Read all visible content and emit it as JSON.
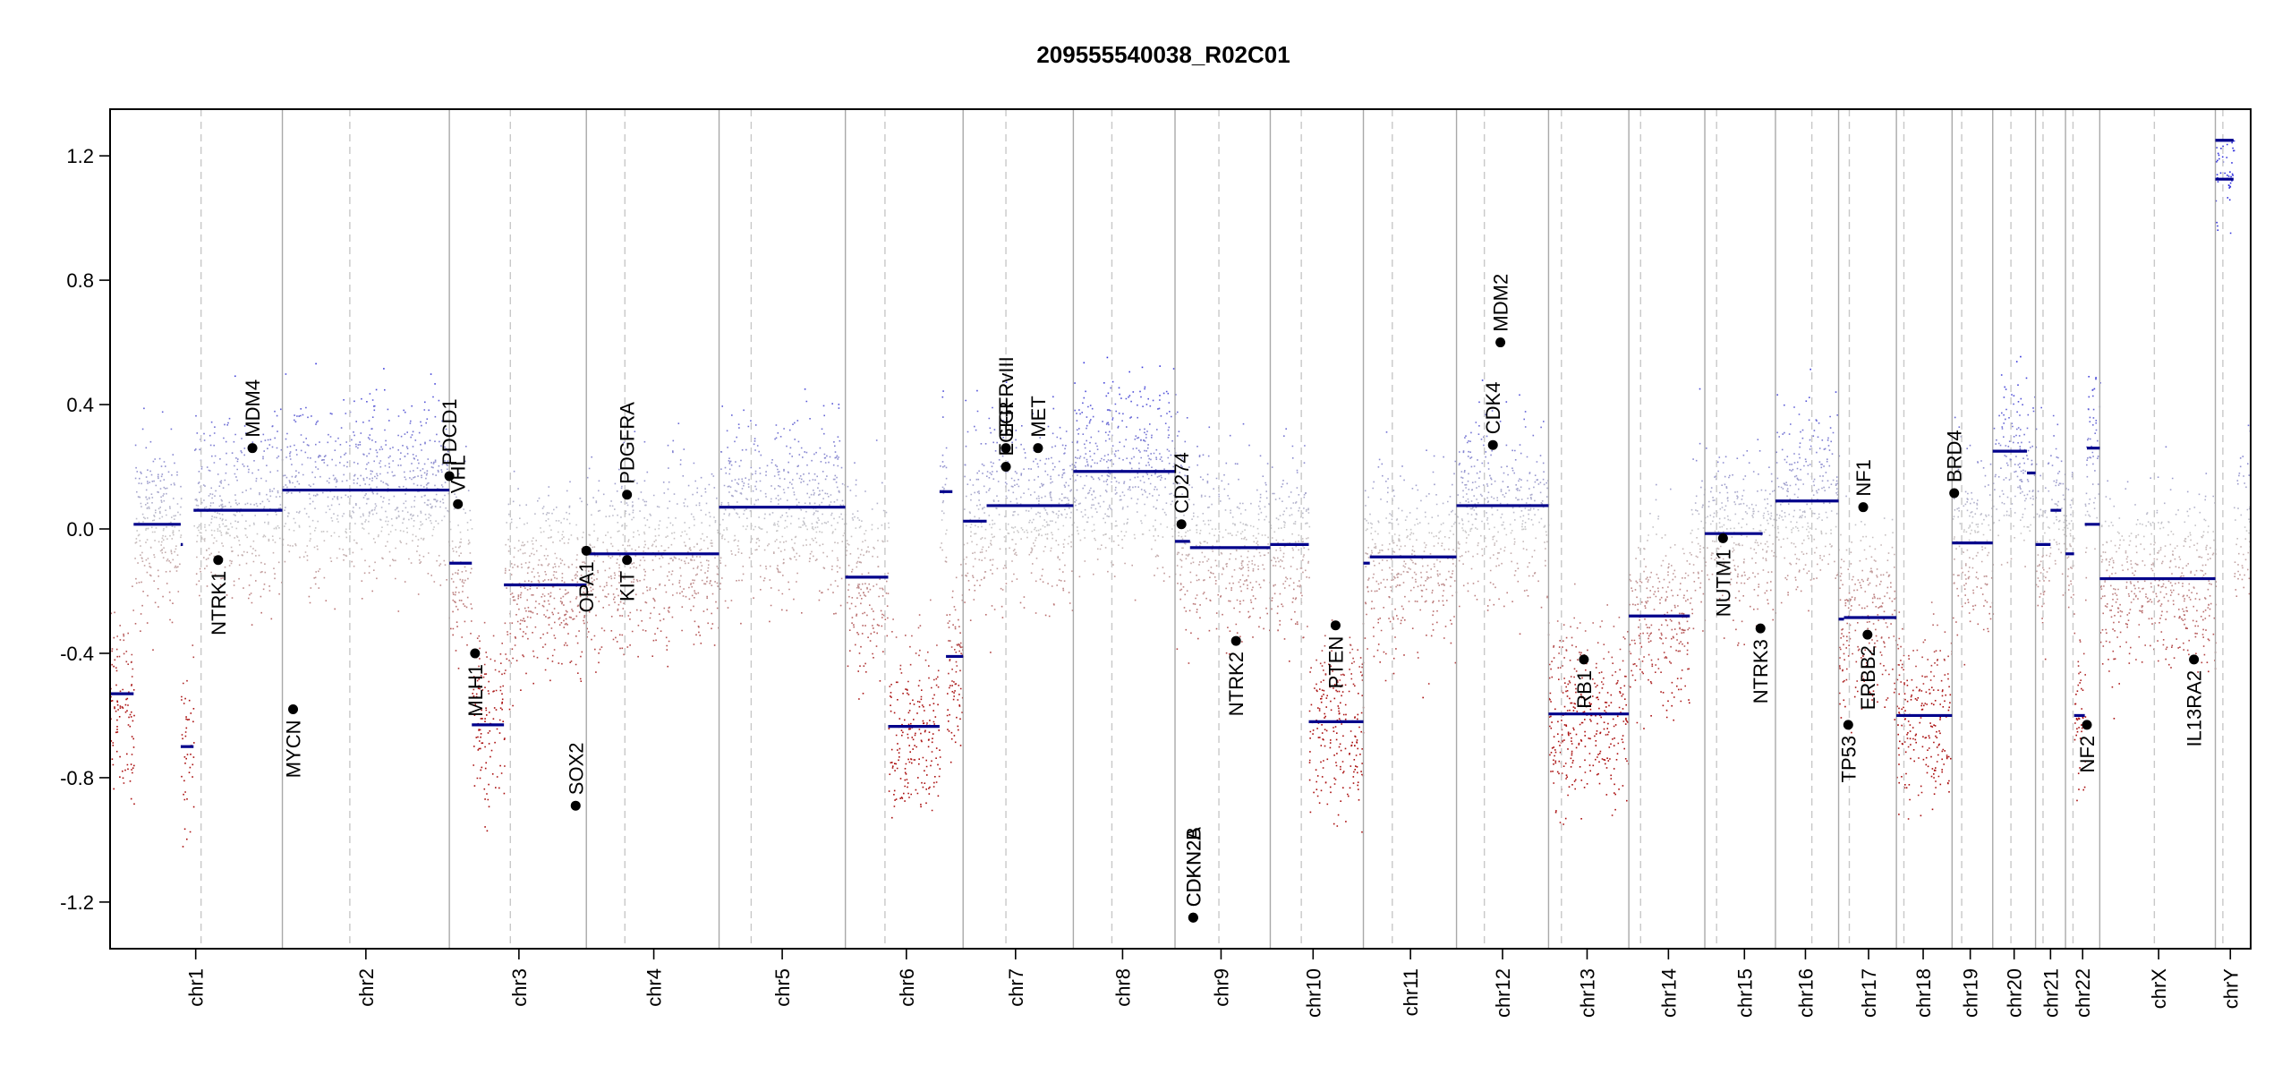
{
  "chart_data": {
    "type": "scatter",
    "title": "209555540038_R02C01",
    "xlabel": "",
    "ylabel": "",
    "ylim": [
      -1.35,
      1.35
    ],
    "yticks": [
      -1.2,
      -0.8,
      -0.4,
      0.0,
      0.4,
      0.8,
      1.2
    ],
    "ytick_labels": [
      "-1.2",
      "-0.8",
      "-0.4",
      "0.0",
      "0.4",
      "0.8",
      "1.2"
    ],
    "grid": false,
    "legend": "none",
    "colors": {
      "gain": "#3b3bd0",
      "loss": "#b01010",
      "neutral": "#c8c8c8",
      "segment": "#00008b",
      "frame": "#000000",
      "divider": "#a9a9a9"
    },
    "chromosomes": [
      {
        "name": "chr1",
        "start": 0.0,
        "end": 0.0805,
        "center": 0.04
      },
      {
        "name": "chr2",
        "start": 0.0805,
        "end": 0.1585,
        "center": 0.1195
      },
      {
        "name": "chr3",
        "start": 0.1585,
        "end": 0.2225,
        "center": 0.191
      },
      {
        "name": "chr4",
        "start": 0.2225,
        "end": 0.2845,
        "center": 0.254
      },
      {
        "name": "chr5",
        "start": 0.2845,
        "end": 0.3435,
        "center": 0.314
      },
      {
        "name": "chr6",
        "start": 0.3435,
        "end": 0.3985,
        "center": 0.372
      },
      {
        "name": "chr7",
        "start": 0.3985,
        "end": 0.45,
        "center": 0.423
      },
      {
        "name": "chr8",
        "start": 0.45,
        "end": 0.4975,
        "center": 0.473
      },
      {
        "name": "chr9",
        "start": 0.4975,
        "end": 0.542,
        "center": 0.519
      },
      {
        "name": "chr10",
        "start": 0.542,
        "end": 0.5855,
        "center": 0.562
      },
      {
        "name": "chr11",
        "start": 0.5855,
        "end": 0.629,
        "center": 0.6075
      },
      {
        "name": "chr12",
        "start": 0.629,
        "end": 0.672,
        "center": 0.6505
      },
      {
        "name": "chr13",
        "start": 0.672,
        "end": 0.7095,
        "center": 0.69
      },
      {
        "name": "chr14",
        "start": 0.7095,
        "end": 0.745,
        "center": 0.728
      },
      {
        "name": "chr15",
        "start": 0.745,
        "end": 0.778,
        "center": 0.7635
      },
      {
        "name": "chr16",
        "start": 0.778,
        "end": 0.8075,
        "center": 0.792
      },
      {
        "name": "chr17",
        "start": 0.8075,
        "end": 0.8345,
        "center": 0.8215
      },
      {
        "name": "chr18",
        "start": 0.8345,
        "end": 0.8605,
        "center": 0.847
      },
      {
        "name": "chr19",
        "start": 0.8605,
        "end": 0.8795,
        "center": 0.869
      },
      {
        "name": "chr20",
        "start": 0.8795,
        "end": 0.8995,
        "center": 0.8895
      },
      {
        "name": "chr21",
        "start": 0.8995,
        "end": 0.9135,
        "center": 0.9065
      },
      {
        "name": "chr22",
        "start": 0.9135,
        "end": 0.9295,
        "center": 0.9215
      },
      {
        "name": "chrX",
        "start": 0.9295,
        "end": 0.9835,
        "center": 0.957
      },
      {
        "name": "chrY",
        "start": 0.9835,
        "end": 1.0,
        "center": 0.9905
      }
    ],
    "centromeres": [
      0.0425,
      0.112,
      0.187,
      0.2405,
      0.2995,
      0.362,
      0.4185,
      0.468,
      0.518,
      0.5565,
      0.599,
      0.642,
      0.678,
      0.715,
      0.7505,
      0.795,
      0.8125,
      0.838,
      0.865,
      0.888,
      0.903,
      0.917,
      0.955,
      0.987
    ],
    "segments": [
      {
        "x0": 0.0,
        "x1": 0.011,
        "y": -0.53
      },
      {
        "x0": 0.011,
        "x1": 0.033,
        "y": 0.015
      },
      {
        "x0": 0.033,
        "x1": 0.034,
        "y": -0.05
      },
      {
        "x0": 0.033,
        "x1": 0.039,
        "y": -0.7
      },
      {
        "x0": 0.039,
        "x1": 0.0805,
        "y": 0.06
      },
      {
        "x0": 0.0805,
        "x1": 0.1585,
        "y": 0.125
      },
      {
        "x0": 0.1585,
        "x1": 0.169,
        "y": -0.11
      },
      {
        "x0": 0.169,
        "x1": 0.184,
        "y": -0.63
      },
      {
        "x0": 0.184,
        "x1": 0.2225,
        "y": -0.18
      },
      {
        "x0": 0.2225,
        "x1": 0.2845,
        "y": -0.08
      },
      {
        "x0": 0.2845,
        "x1": 0.3435,
        "y": 0.07
      },
      {
        "x0": 0.3435,
        "x1": 0.3635,
        "y": -0.155
      },
      {
        "x0": 0.3635,
        "x1": 0.3875,
        "y": -0.635
      },
      {
        "x0": 0.3875,
        "x1": 0.3935,
        "y": 0.12
      },
      {
        "x0": 0.3905,
        "x1": 0.3985,
        "y": -0.41
      },
      {
        "x0": 0.3985,
        "x1": 0.4095,
        "y": 0.025
      },
      {
        "x0": 0.4095,
        "x1": 0.45,
        "y": 0.075
      },
      {
        "x0": 0.45,
        "x1": 0.4975,
        "y": 0.185
      },
      {
        "x0": 0.4975,
        "x1": 0.5045,
        "y": -0.04
      },
      {
        "x0": 0.5045,
        "x1": 0.542,
        "y": -0.06
      },
      {
        "x0": 0.542,
        "x1": 0.56,
        "y": -0.05
      },
      {
        "x0": 0.56,
        "x1": 0.5855,
        "y": -0.62
      },
      {
        "x0": 0.5855,
        "x1": 0.5885,
        "y": -0.11
      },
      {
        "x0": 0.5885,
        "x1": 0.629,
        "y": -0.09
      },
      {
        "x0": 0.629,
        "x1": 0.672,
        "y": 0.075
      },
      {
        "x0": 0.672,
        "x1": 0.7095,
        "y": -0.595
      },
      {
        "x0": 0.7095,
        "x1": 0.738,
        "y": -0.28
      },
      {
        "x0": 0.745,
        "x1": 0.772,
        "y": -0.015
      },
      {
        "x0": 0.778,
        "x1": 0.8075,
        "y": 0.09
      },
      {
        "x0": 0.8075,
        "x1": 0.81,
        "y": -0.29
      },
      {
        "x0": 0.81,
        "x1": 0.8345,
        "y": -0.285
      },
      {
        "x0": 0.8345,
        "x1": 0.8605,
        "y": -0.6
      },
      {
        "x0": 0.8605,
        "x1": 0.8795,
        "y": -0.045
      },
      {
        "x0": 0.8795,
        "x1": 0.8955,
        "y": 0.25
      },
      {
        "x0": 0.8955,
        "x1": 0.8995,
        "y": 0.18
      },
      {
        "x0": 0.8995,
        "x1": 0.9065,
        "y": -0.05
      },
      {
        "x0": 0.9065,
        "x1": 0.9115,
        "y": 0.06
      },
      {
        "x0": 0.9135,
        "x1": 0.9175,
        "y": -0.08
      },
      {
        "x0": 0.9175,
        "x1": 0.9225,
        "y": -0.6
      },
      {
        "x0": 0.9225,
        "x1": 0.9295,
        "y": 0.015
      },
      {
        "x0": 0.9235,
        "x1": 0.9295,
        "y": 0.26
      },
      {
        "x0": 0.9295,
        "x1": 0.9835,
        "y": -0.16
      },
      {
        "x0": 0.9835,
        "x1": 0.992,
        "y": 1.125
      },
      {
        "x0": 0.9835,
        "x1": 0.992,
        "y": 1.25
      }
    ],
    "genes": [
      {
        "name": "NTRK1",
        "x": 0.0505,
        "y": -0.1,
        "side": "below"
      },
      {
        "name": "MDM4",
        "x": 0.0665,
        "y": 0.26,
        "side": "above"
      },
      {
        "name": "MYCN",
        "x": 0.0855,
        "y": -0.58,
        "side": "below"
      },
      {
        "name": "PDCD1",
        "x": 0.1585,
        "y": 0.17,
        "side": "above"
      },
      {
        "name": "VHL",
        "x": 0.1625,
        "y": 0.08,
        "side": "above"
      },
      {
        "name": "MLH1",
        "x": 0.1705,
        "y": -0.4,
        "side": "below"
      },
      {
        "name": "SOX2",
        "x": 0.2175,
        "y": -0.89,
        "side": "above"
      },
      {
        "name": "OPA1",
        "x": 0.2225,
        "y": -0.07,
        "side": "below"
      },
      {
        "name": "PDGFRA",
        "x": 0.2415,
        "y": 0.11,
        "side": "above"
      },
      {
        "name": "KIT",
        "x": 0.2415,
        "y": -0.1,
        "side": "below"
      },
      {
        "name": "EGFR",
        "x": 0.4185,
        "y": 0.2,
        "side": "above"
      },
      {
        "name": "EGFRvIII",
        "x": 0.4185,
        "y": 0.26,
        "side": "above"
      },
      {
        "name": "MET",
        "x": 0.4335,
        "y": 0.26,
        "side": "above"
      },
      {
        "name": "CD274",
        "x": 0.5005,
        "y": 0.015,
        "side": "above"
      },
      {
        "name": "CDKN2A",
        "x": 0.506,
        "y": -1.25,
        "side": "above"
      },
      {
        "name": "CDKN2B",
        "x": 0.506,
        "y": -1.25,
        "side": "above"
      },
      {
        "name": "NTRK2",
        "x": 0.526,
        "y": -0.36,
        "side": "below"
      },
      {
        "name": "PTEN",
        "x": 0.5725,
        "y": -0.31,
        "side": "below"
      },
      {
        "name": "CDK4",
        "x": 0.646,
        "y": 0.27,
        "side": "above"
      },
      {
        "name": "MDM2",
        "x": 0.6495,
        "y": 0.6,
        "side": "above"
      },
      {
        "name": "RB1",
        "x": 0.6885,
        "y": -0.42,
        "side": "below"
      },
      {
        "name": "NUTM1",
        "x": 0.7535,
        "y": -0.03,
        "side": "below"
      },
      {
        "name": "NTRK3",
        "x": 0.771,
        "y": -0.32,
        "side": "below"
      },
      {
        "name": "NF1",
        "x": 0.819,
        "y": 0.07,
        "side": "above"
      },
      {
        "name": "TP53",
        "x": 0.812,
        "y": -0.63,
        "side": "below"
      },
      {
        "name": "ERBB2",
        "x": 0.821,
        "y": -0.34,
        "side": "below"
      },
      {
        "name": "BRD4",
        "x": 0.8615,
        "y": 0.115,
        "side": "above"
      },
      {
        "name": "NF2",
        "x": 0.9235,
        "y": -0.63,
        "side": "below"
      },
      {
        "name": "IL13RA2",
        "x": 0.9735,
        "y": -0.42,
        "side": "below"
      }
    ]
  }
}
